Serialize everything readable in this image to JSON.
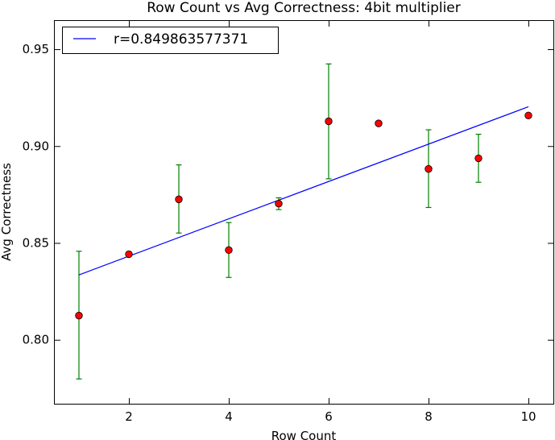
{
  "chart_data": {
    "type": "scatter",
    "title": "Row Count vs Avg Correctness: 4bit multiplier",
    "xlabel": "Row Count",
    "ylabel": "Avg Correctness",
    "xlim": [
      0.5,
      10.5
    ],
    "ylim": [
      0.767,
      0.965
    ],
    "xticks": [
      2,
      4,
      6,
      8,
      10
    ],
    "xtick_labels": [
      "2",
      "4",
      "6",
      "8",
      "10"
    ],
    "yticks": [
      0.8,
      0.85,
      0.9,
      0.95
    ],
    "ytick_labels": [
      "0.80",
      "0.85",
      "0.90",
      "0.95"
    ],
    "grid": false,
    "series": [
      {
        "name": "Avg Correctness",
        "kind": "errorbar-points",
        "marker_color": "#ff0000",
        "errorbar_color": "#008000",
        "x": [
          1,
          2,
          3,
          4,
          5,
          6,
          7,
          8,
          9,
          10
        ],
        "y": [
          0.8125,
          0.8442,
          0.8725,
          0.8463,
          0.8703,
          0.9128,
          0.9117,
          0.8882,
          0.8937,
          0.9158
        ],
        "err_low": [
          0.7798,
          0.8442,
          0.8551,
          0.8322,
          0.8672,
          0.8831,
          0.9117,
          0.8683,
          0.8813,
          0.9158
        ],
        "err_high": [
          0.8457,
          0.8442,
          0.8903,
          0.8605,
          0.8733,
          0.9424,
          0.9117,
          0.9084,
          0.9061,
          0.9158
        ]
      },
      {
        "name": "r=0.849863577371",
        "kind": "line",
        "color": "#0000ff",
        "x": [
          1,
          10
        ],
        "y": [
          0.8335,
          0.9203
        ]
      }
    ],
    "legend": {
      "entries": [
        "r=0.849863577371"
      ],
      "position": "top-left"
    }
  }
}
